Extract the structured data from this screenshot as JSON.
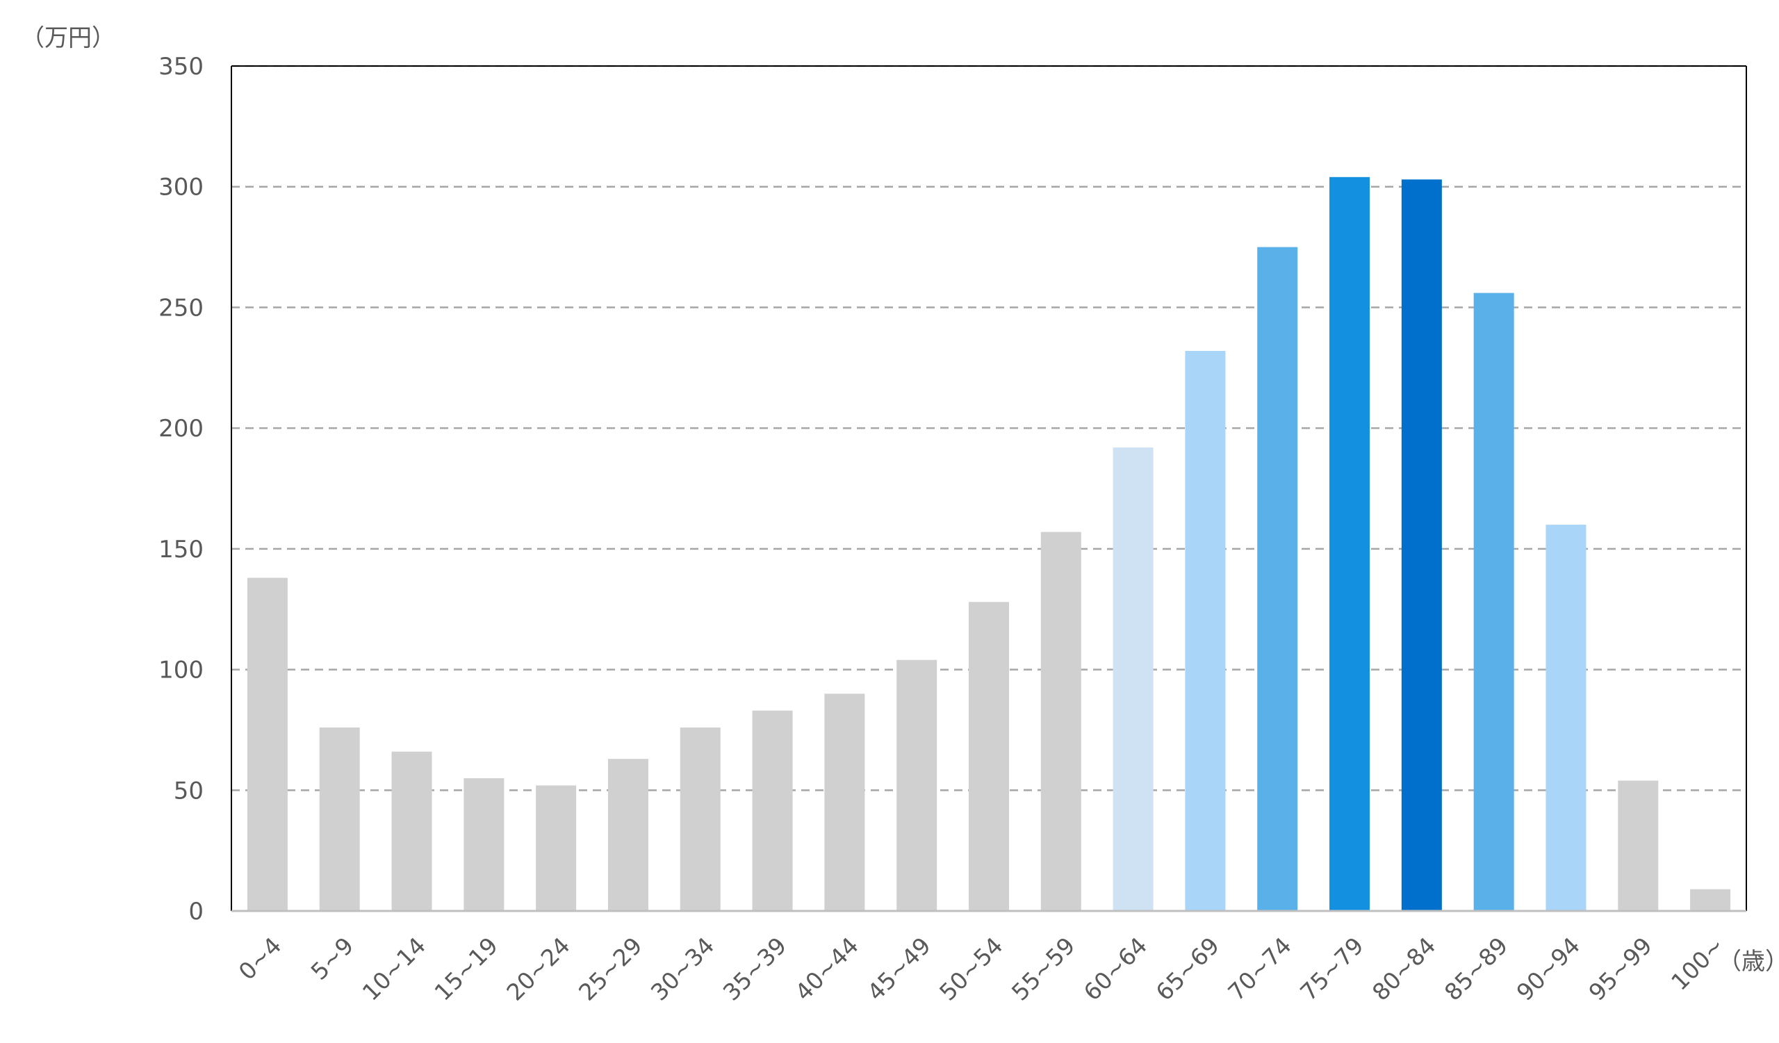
{
  "chart_data": {
    "type": "bar",
    "y_unit": "（万円）",
    "x_unit": "（歳）",
    "ylim": [
      0,
      350
    ],
    "yticks": [
      0,
      50,
      100,
      150,
      200,
      250,
      300,
      350
    ],
    "grid": true,
    "categories": [
      "0~4",
      "5~9",
      "10~14",
      "15~19",
      "20~24",
      "25~29",
      "30~34",
      "35~39",
      "40~44",
      "45~49",
      "50~54",
      "55~59",
      "60~64",
      "65~69",
      "70~74",
      "75~79",
      "80~84",
      "85~89",
      "90~94",
      "95~99",
      "100~"
    ],
    "values": [
      138,
      76,
      66,
      55,
      52,
      63,
      76,
      83,
      90,
      104,
      128,
      157,
      192,
      232,
      275,
      304,
      303,
      256,
      160,
      54,
      9
    ],
    "colors": [
      "#d0d0d0",
      "#d0d0d0",
      "#d0d0d0",
      "#d0d0d0",
      "#d0d0d0",
      "#d0d0d0",
      "#d0d0d0",
      "#d0d0d0",
      "#d0d0d0",
      "#d0d0d0",
      "#d0d0d0",
      "#d0d0d0",
      "#cfe2f3",
      "#a9d5f8",
      "#5ab0e8",
      "#1490e0",
      "#0070cc",
      "#5ab0e8",
      "#a9d5f8",
      "#d0d0d0",
      "#d0d0d0"
    ]
  }
}
